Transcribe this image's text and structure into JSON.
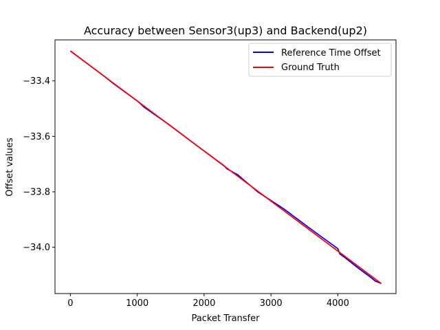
{
  "chart_data": {
    "type": "line",
    "title": "Accuracy between Sensor3(up3) and Backend(up2)",
    "xlabel": "Packet Transfer",
    "ylabel": "Offset values",
    "xlim": [
      -230,
      4870
    ],
    "ylim": [
      -34.167,
      -33.252
    ],
    "xticks": [
      0,
      1000,
      2000,
      3000,
      4000
    ],
    "xtick_labels": [
      "0",
      "1000",
      "2000",
      "3000",
      "4000"
    ],
    "yticks": [
      -34.0,
      -33.8,
      -33.6,
      -33.4
    ],
    "ytick_labels": [
      "−34.0",
      "−33.8",
      "−33.6",
      "−33.4"
    ],
    "grid": false,
    "legend_position": "upper right",
    "series": [
      {
        "name": "Reference Time Offset",
        "color": "#0000ff",
        "x": [
          0,
          500,
          640,
          1000,
          1100,
          1500,
          1900,
          2300,
          2340,
          2500,
          2800,
          3200,
          3600,
          4000,
          4030,
          4100,
          4300,
          4500,
          4560,
          4650
        ],
        "y": [
          -33.292,
          -33.382,
          -33.409,
          -33.472,
          -33.494,
          -33.562,
          -33.635,
          -33.706,
          -33.717,
          -33.738,
          -33.8,
          -33.863,
          -33.935,
          -34.005,
          -34.024,
          -34.036,
          -34.074,
          -34.11,
          -34.122,
          -34.131
        ]
      },
      {
        "name": "Ground Truth",
        "color": "#ff0000",
        "x": [
          0,
          4650
        ],
        "y": [
          -33.292,
          -34.131
        ]
      }
    ]
  }
}
